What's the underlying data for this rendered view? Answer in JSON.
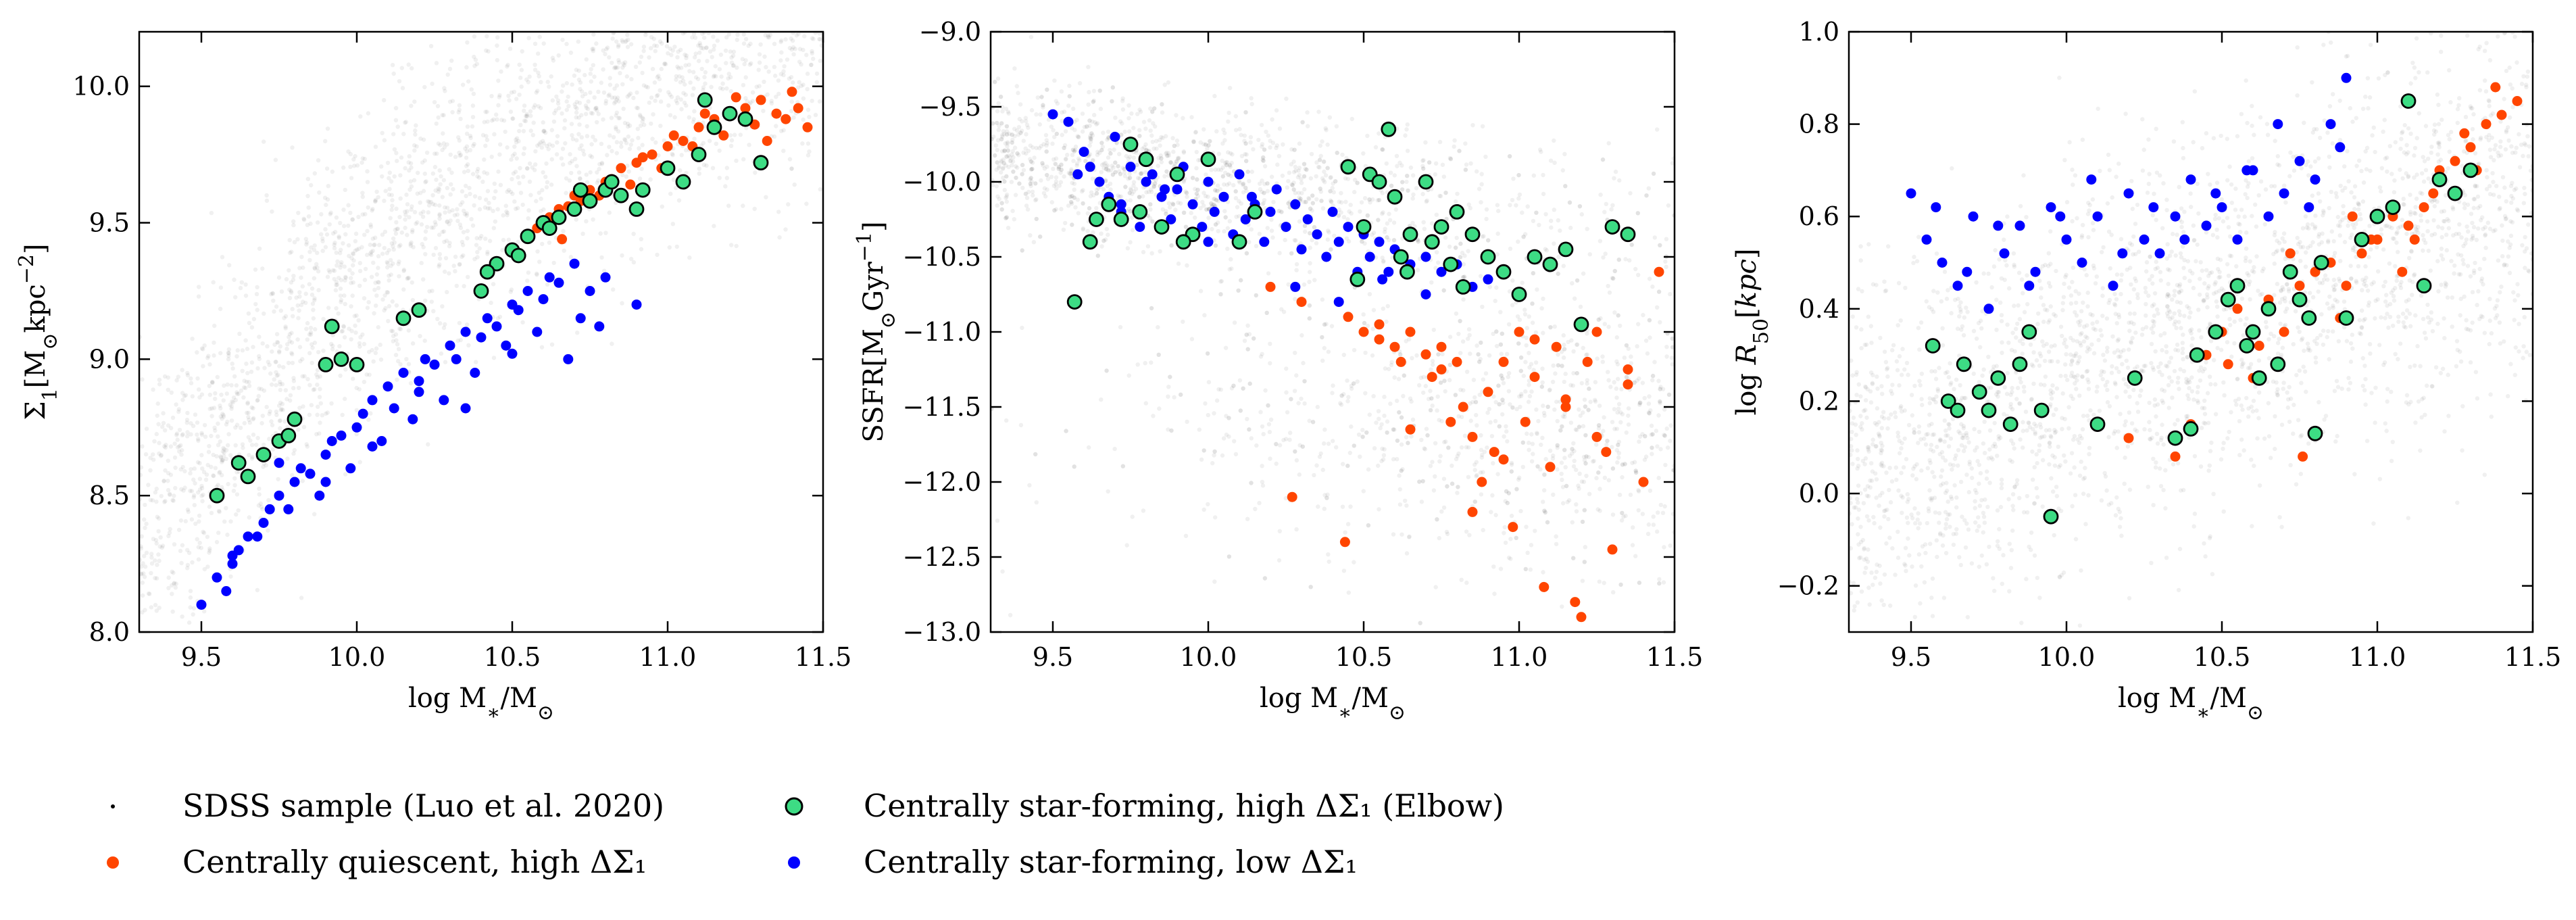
{
  "colors": {
    "sdss": "#555555",
    "quiescent_high": "#ff4500",
    "sf_low": "#0000ff",
    "elbow_fill": "#3ddc84",
    "elbow_edge": "#000000"
  },
  "legend": {
    "sdss": "SDSS sample (Luo et al. 2020)",
    "quiescent_high": "Centrally quiescent, high ΔΣ₁",
    "elbow": "Centrally star-forming, high ΔΣ₁ (Elbow)",
    "sf_low": "Centrally star-forming, low ΔΣ₁"
  },
  "chart_data": [
    {
      "type": "scatter",
      "panel": "sigma1",
      "title": "",
      "xlabel": "log M*/M⊙",
      "ylabel": "Σ₁[M⊙kpc⁻²]",
      "xlim": [
        9.3,
        11.5
      ],
      "ylim": [
        8.0,
        10.2
      ],
      "xticks": [
        9.5,
        10.0,
        10.5,
        11.0,
        11.5
      ],
      "yticks": [
        8.0,
        8.5,
        9.0,
        9.5,
        10.0
      ],
      "xtick_labels": [
        "9.5",
        "10.0",
        "10.5",
        "11.0",
        "11.5"
      ],
      "ytick_labels": [
        "8.0",
        "8.5",
        "9.0",
        "9.5",
        "10.0"
      ],
      "series": [
        {
          "name": "Centrally quiescent, high ΔΣ₁",
          "key": "quiescent_high",
          "x": [
            10.45,
            10.55,
            10.6,
            10.65,
            10.7,
            10.75,
            10.8,
            10.85,
            10.9,
            10.95,
            11.0,
            11.05,
            11.1,
            11.15,
            11.2,
            11.25,
            11.3,
            11.35,
            11.4,
            11.45,
            10.5,
            10.62,
            10.72,
            10.82,
            10.92,
            11.02,
            11.12,
            11.22,
            11.32,
            11.42,
            10.58,
            10.68,
            10.78,
            10.88,
            10.98,
            11.08,
            11.18,
            11.28,
            11.38,
            10.66
          ],
          "y": [
            9.35,
            9.45,
            9.5,
            9.55,
            9.6,
            9.62,
            9.65,
            9.7,
            9.72,
            9.75,
            9.78,
            9.8,
            9.85,
            9.88,
            9.9,
            9.92,
            9.95,
            9.9,
            9.98,
            9.85,
            9.4,
            9.52,
            9.58,
            9.66,
            9.74,
            9.82,
            9.9,
            9.96,
            9.8,
            9.92,
            9.48,
            9.56,
            9.6,
            9.64,
            9.7,
            9.78,
            9.82,
            9.86,
            9.88,
            9.44
          ]
        },
        {
          "name": "Centrally star-forming, low ΔΣ₁",
          "key": "sf_low",
          "x": [
            9.5,
            9.55,
            9.6,
            9.62,
            9.65,
            9.7,
            9.72,
            9.75,
            9.8,
            9.82,
            9.85,
            9.9,
            9.92,
            9.95,
            10.0,
            10.02,
            10.05,
            10.1,
            10.12,
            10.15,
            10.2,
            10.22,
            10.25,
            10.3,
            10.32,
            10.35,
            10.4,
            10.42,
            10.45,
            10.5,
            10.52,
            10.55,
            10.6,
            10.62,
            10.65,
            10.7,
            10.72,
            10.75,
            10.8,
            10.9,
            9.58,
            9.68,
            9.78,
            9.88,
            9.98,
            10.08,
            10.18,
            10.28,
            10.38,
            10.48,
            10.58,
            10.68,
            10.78,
            9.6,
            9.75,
            9.9,
            10.05,
            10.2,
            10.35,
            10.5
          ],
          "y": [
            8.1,
            8.2,
            8.25,
            8.3,
            8.35,
            8.4,
            8.45,
            8.5,
            8.55,
            8.6,
            8.58,
            8.65,
            8.7,
            8.72,
            8.75,
            8.8,
            8.85,
            8.9,
            8.82,
            8.95,
            8.92,
            9.0,
            8.98,
            9.05,
            9.0,
            9.1,
            9.08,
            9.15,
            9.12,
            9.2,
            9.18,
            9.25,
            9.22,
            9.3,
            9.28,
            9.35,
            9.15,
            9.25,
            9.3,
            9.2,
            8.15,
            8.35,
            8.45,
            8.5,
            8.6,
            8.7,
            8.78,
            8.85,
            8.95,
            9.05,
            9.1,
            9.0,
            9.12,
            8.28,
            8.62,
            8.55,
            8.68,
            8.88,
            8.82,
            9.02
          ]
        },
        {
          "name": "Centrally star-forming, high ΔΣ₁ (Elbow)",
          "key": "elbow",
          "x": [
            9.55,
            9.65,
            9.7,
            9.75,
            9.8,
            9.9,
            9.95,
            10.0,
            10.15,
            10.2,
            10.4,
            10.45,
            10.5,
            10.55,
            10.6,
            10.65,
            10.7,
            10.75,
            10.8,
            10.85,
            10.9,
            11.0,
            11.05,
            11.1,
            11.15,
            11.2,
            11.3,
            9.62,
            9.78,
            9.92,
            10.42,
            10.52,
            10.62,
            10.72,
            10.82,
            10.92,
            11.12,
            11.25
          ],
          "y": [
            8.5,
            8.57,
            8.65,
            8.7,
            8.78,
            8.98,
            9.0,
            8.98,
            9.15,
            9.18,
            9.25,
            9.35,
            9.4,
            9.45,
            9.5,
            9.52,
            9.55,
            9.58,
            9.62,
            9.6,
            9.55,
            9.7,
            9.65,
            9.75,
            9.85,
            9.9,
            9.72,
            8.62,
            8.72,
            9.12,
            9.32,
            9.38,
            9.48,
            9.62,
            9.65,
            9.62,
            9.95,
            9.88
          ]
        }
      ]
    },
    {
      "type": "scatter",
      "panel": "ssfr",
      "title": "",
      "xlabel": "log M*/M⊙",
      "ylabel": "SSFR[M⊙Gyr⁻¹]",
      "xlim": [
        9.3,
        11.5
      ],
      "ylim": [
        -13.0,
        -9.0
      ],
      "xticks": [
        9.5,
        10.0,
        10.5,
        11.0,
        11.5
      ],
      "yticks": [
        -13.0,
        -12.5,
        -12.0,
        -11.5,
        -11.0,
        -10.5,
        -10.0,
        -9.5,
        -9.0
      ],
      "xtick_labels": [
        "9.5",
        "10.0",
        "10.5",
        "11.0",
        "11.5"
      ],
      "ytick_labels": [
        "−13.0",
        "−12.5",
        "−12.0",
        "−11.5",
        "−11.0",
        "−10.5",
        "−10.0",
        "−9.5",
        "−9.0"
      ],
      "series": [
        {
          "name": "Centrally quiescent, high ΔΣ₁",
          "key": "quiescent_high",
          "x": [
            10.2,
            10.3,
            10.45,
            10.5,
            10.55,
            10.6,
            10.62,
            10.65,
            10.7,
            10.72,
            10.75,
            10.78,
            10.8,
            10.82,
            10.85,
            10.88,
            10.9,
            10.92,
            10.95,
            10.98,
            11.0,
            11.02,
            11.05,
            11.08,
            11.1,
            11.12,
            11.15,
            11.18,
            11.2,
            11.22,
            11.25,
            11.28,
            11.3,
            11.35,
            11.4,
            11.45,
            10.27,
            10.44,
            10.55,
            10.65,
            10.75,
            10.85,
            10.95,
            11.05,
            11.15,
            11.25,
            11.35
          ],
          "y": [
            -10.7,
            -10.8,
            -10.9,
            -11.0,
            -11.05,
            -11.1,
            -11.2,
            -11.0,
            -11.15,
            -11.3,
            -11.1,
            -11.6,
            -11.2,
            -11.5,
            -11.7,
            -12.0,
            -11.4,
            -11.8,
            -11.2,
            -12.3,
            -11.0,
            -11.6,
            -11.3,
            -12.7,
            -11.9,
            -11.1,
            -11.5,
            -12.8,
            -12.9,
            -11.2,
            -11.0,
            -11.8,
            -12.45,
            -11.35,
            -12.0,
            -10.6,
            -12.1,
            -12.4,
            -10.95,
            -11.65,
            -11.25,
            -12.2,
            -11.85,
            -11.05,
            -11.45,
            -11.7,
            -11.25
          ]
        },
        {
          "name": "Centrally star-forming, low ΔΣ₁",
          "key": "sf_low",
          "x": [
            9.5,
            9.55,
            9.6,
            9.62,
            9.65,
            9.68,
            9.7,
            9.72,
            9.75,
            9.78,
            9.8,
            9.82,
            9.85,
            9.88,
            9.9,
            9.92,
            9.95,
            9.98,
            10.0,
            10.02,
            10.05,
            10.08,
            10.1,
            10.12,
            10.15,
            10.18,
            10.2,
            10.22,
            10.25,
            10.28,
            10.3,
            10.32,
            10.35,
            10.38,
            10.4,
            10.42,
            10.45,
            10.48,
            10.5,
            10.52,
            10.55,
            10.58,
            10.6,
            10.65,
            10.7,
            10.75,
            10.8,
            10.85,
            10.9,
            9.58,
            9.72,
            9.86,
            10.0,
            10.14,
            10.28,
            10.42,
            10.56,
            10.7
          ],
          "y": [
            -9.55,
            -9.6,
            -9.8,
            -9.9,
            -10.0,
            -10.1,
            -9.7,
            -10.2,
            -9.9,
            -10.3,
            -10.0,
            -9.95,
            -10.1,
            -10.25,
            -10.05,
            -9.9,
            -10.15,
            -10.3,
            -10.0,
            -10.2,
            -10.1,
            -10.35,
            -9.95,
            -10.25,
            -10.15,
            -10.4,
            -10.2,
            -10.05,
            -10.3,
            -10.15,
            -10.45,
            -10.25,
            -10.35,
            -10.5,
            -10.2,
            -10.4,
            -10.3,
            -10.6,
            -10.35,
            -10.5,
            -10.4,
            -10.6,
            -10.45,
            -10.55,
            -10.5,
            -10.6,
            -10.55,
            -10.7,
            -10.65,
            -9.95,
            -10.15,
            -10.05,
            -10.4,
            -10.1,
            -10.7,
            -10.8,
            -10.65,
            -10.75
          ]
        },
        {
          "name": "Centrally star-forming, high ΔΣ₁ (Elbow)",
          "key": "elbow",
          "x": [
            9.57,
            9.62,
            9.68,
            9.72,
            9.75,
            9.8,
            9.85,
            9.9,
            9.95,
            10.0,
            10.1,
            10.15,
            10.45,
            10.5,
            10.52,
            10.55,
            10.58,
            10.6,
            10.62,
            10.65,
            10.7,
            10.72,
            10.75,
            10.78,
            10.8,
            10.85,
            10.9,
            10.95,
            11.0,
            11.05,
            11.1,
            11.15,
            11.2,
            11.3,
            11.35,
            9.64,
            9.78,
            9.92,
            10.48,
            10.64,
            10.82
          ],
          "y": [
            -10.8,
            -10.4,
            -10.15,
            -10.25,
            -9.75,
            -9.85,
            -10.3,
            -9.95,
            -10.35,
            -9.85,
            -10.4,
            -10.2,
            -9.9,
            -10.3,
            -9.95,
            -10.0,
            -9.65,
            -10.1,
            -10.5,
            -10.35,
            -10.0,
            -10.4,
            -10.3,
            -10.55,
            -10.2,
            -10.35,
            -10.5,
            -10.6,
            -10.75,
            -10.5,
            -10.55,
            -10.45,
            -10.95,
            -10.3,
            -10.35,
            -10.25,
            -10.2,
            -10.4,
            -10.65,
            -10.6,
            -10.7
          ]
        }
      ]
    },
    {
      "type": "scatter",
      "panel": "r50",
      "title": "",
      "xlabel": "log M*/M⊙",
      "ylabel": "log R50[kpc]",
      "xlim": [
        9.3,
        11.5
      ],
      "ylim": [
        -0.3,
        1.0
      ],
      "xticks": [
        9.5,
        10.0,
        10.5,
        11.0,
        11.5
      ],
      "yticks": [
        -0.2,
        0.0,
        0.2,
        0.4,
        0.6,
        0.8,
        1.0
      ],
      "xtick_labels": [
        "9.5",
        "10.0",
        "10.5",
        "11.0",
        "11.5"
      ],
      "ytick_labels": [
        "−0.2",
        "0.0",
        "0.2",
        "0.4",
        "0.6",
        "0.8",
        "1.0"
      ],
      "series": [
        {
          "name": "Centrally quiescent, high ΔΣ₁",
          "key": "quiescent_high",
          "x": [
            10.4,
            10.45,
            10.5,
            10.55,
            10.6,
            10.65,
            10.7,
            10.75,
            10.8,
            10.85,
            10.9,
            10.95,
            11.0,
            11.05,
            11.1,
            11.15,
            11.2,
            11.25,
            11.3,
            11.35,
            11.4,
            11.45,
            10.2,
            10.35,
            10.62,
            10.76,
            10.88,
            10.98,
            11.08,
            11.18,
            11.28,
            11.38,
            10.52,
            10.72,
            10.92,
            11.12,
            11.32
          ],
          "y": [
            0.15,
            0.3,
            0.35,
            0.4,
            0.25,
            0.42,
            0.35,
            0.45,
            0.48,
            0.5,
            0.45,
            0.52,
            0.55,
            0.6,
            0.58,
            0.62,
            0.7,
            0.72,
            0.75,
            0.8,
            0.82,
            0.85,
            0.12,
            0.08,
            0.32,
            0.08,
            0.38,
            0.55,
            0.48,
            0.65,
            0.78,
            0.88,
            0.28,
            0.52,
            0.6,
            0.55,
            0.7
          ]
        },
        {
          "name": "Centrally star-forming, low ΔΣ₁",
          "key": "sf_low",
          "x": [
            9.5,
            9.55,
            9.6,
            9.65,
            9.7,
            9.75,
            9.8,
            9.85,
            9.9,
            9.95,
            10.0,
            10.05,
            10.1,
            10.15,
            10.2,
            10.25,
            10.3,
            10.35,
            10.4,
            10.45,
            10.5,
            10.55,
            10.6,
            10.65,
            10.7,
            10.75,
            10.8,
            10.85,
            10.9,
            9.58,
            9.68,
            9.78,
            9.88,
            9.98,
            10.08,
            10.18,
            10.28,
            10.38,
            10.48,
            10.58,
            10.68,
            10.78,
            10.88
          ],
          "y": [
            0.65,
            0.55,
            0.5,
            0.45,
            0.6,
            0.4,
            0.52,
            0.58,
            0.48,
            0.62,
            0.55,
            0.5,
            0.6,
            0.45,
            0.65,
            0.55,
            0.52,
            0.6,
            0.68,
            0.58,
            0.62,
            0.55,
            0.7,
            0.6,
            0.65,
            0.72,
            0.68,
            0.8,
            0.9,
            0.62,
            0.48,
            0.58,
            0.45,
            0.6,
            0.68,
            0.52,
            0.62,
            0.55,
            0.65,
            0.7,
            0.8,
            0.62,
            0.75
          ]
        },
        {
          "name": "Centrally star-forming, high ΔΣ₁ (Elbow)",
          "key": "elbow",
          "x": [
            9.57,
            9.62,
            9.67,
            9.72,
            9.75,
            9.78,
            9.82,
            9.88,
            9.92,
            9.95,
            10.1,
            10.22,
            10.35,
            10.42,
            10.48,
            10.52,
            10.55,
            10.58,
            10.62,
            10.65,
            10.68,
            10.72,
            10.75,
            10.78,
            10.82,
            10.9,
            10.95,
            11.0,
            11.05,
            11.1,
            11.15,
            11.2,
            11.25,
            11.3,
            9.65,
            9.85,
            10.4,
            10.6,
            10.8
          ],
          "y": [
            0.32,
            0.2,
            0.28,
            0.22,
            0.18,
            0.25,
            0.15,
            0.35,
            0.18,
            -0.05,
            0.15,
            0.25,
            0.12,
            0.3,
            0.35,
            0.42,
            0.45,
            0.32,
            0.25,
            0.4,
            0.28,
            0.48,
            0.42,
            0.38,
            0.5,
            0.38,
            0.55,
            0.6,
            0.62,
            0.85,
            0.45,
            0.68,
            0.65,
            0.7,
            0.18,
            0.28,
            0.14,
            0.35,
            0.13
          ]
        }
      ]
    }
  ]
}
